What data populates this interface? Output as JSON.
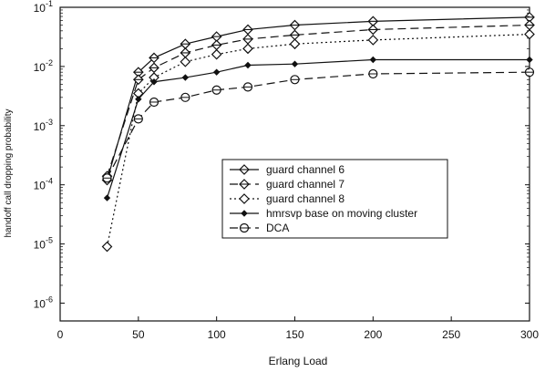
{
  "chart_data": {
    "type": "line",
    "title": "",
    "xlabel": "Erlang Load",
    "ylabel": "handoff call dropping probability",
    "xlim": [
      0,
      300
    ],
    "ylim": [
      5e-07,
      0.1
    ],
    "yscale": "log",
    "grid": false,
    "legend_position": "center-right",
    "x_ticks": [
      0,
      50,
      100,
      150,
      200,
      250,
      300
    ],
    "x_tick_labels": [
      "0",
      "50",
      "100",
      "150",
      "200",
      "250",
      "300"
    ],
    "y_ticks": [
      1e-06,
      1e-05,
      0.0001,
      0.001,
      0.01,
      0.1
    ],
    "y_tick_labels": [
      {
        "base": "10",
        "exp": "-6"
      },
      {
        "base": "10",
        "exp": "-5"
      },
      {
        "base": "10",
        "exp": "-4"
      },
      {
        "base": "10",
        "exp": "-3"
      },
      {
        "base": "10",
        "exp": "-2"
      },
      {
        "base": "10",
        "exp": "-1"
      }
    ],
    "x": [
      30,
      50,
      60,
      80,
      100,
      120,
      150,
      200,
      300
    ],
    "series": [
      {
        "name": "guard channel 6",
        "marker": "diamond-cross",
        "dash": "solid",
        "values": [
          0.00012,
          0.008,
          0.014,
          0.024,
          0.032,
          0.042,
          0.05,
          0.058,
          0.068
        ]
      },
      {
        "name": "guard channel 7",
        "marker": "diamond-cross",
        "dash": "long-dash",
        "values": [
          0.00014,
          0.006,
          0.0095,
          0.017,
          0.023,
          0.029,
          0.034,
          0.042,
          0.05
        ]
      },
      {
        "name": "guard channel 8",
        "marker": "diamond",
        "dash": "dotted",
        "values": [
          9e-06,
          0.0035,
          0.0065,
          0.012,
          0.016,
          0.02,
          0.024,
          0.028,
          0.035
        ]
      },
      {
        "name": "hmrsvp base on moving cluster",
        "marker": "small-diamond",
        "dash": "solid",
        "values": [
          6e-05,
          0.0028,
          0.0055,
          0.0065,
          0.008,
          0.0105,
          0.011,
          0.013,
          0.013
        ]
      },
      {
        "name": "DCA",
        "marker": "circle",
        "dash": "long-dash",
        "values": [
          0.00013,
          0.0013,
          0.0025,
          0.003,
          0.004,
          0.0045,
          0.006,
          0.0075,
          0.008
        ]
      }
    ]
  }
}
